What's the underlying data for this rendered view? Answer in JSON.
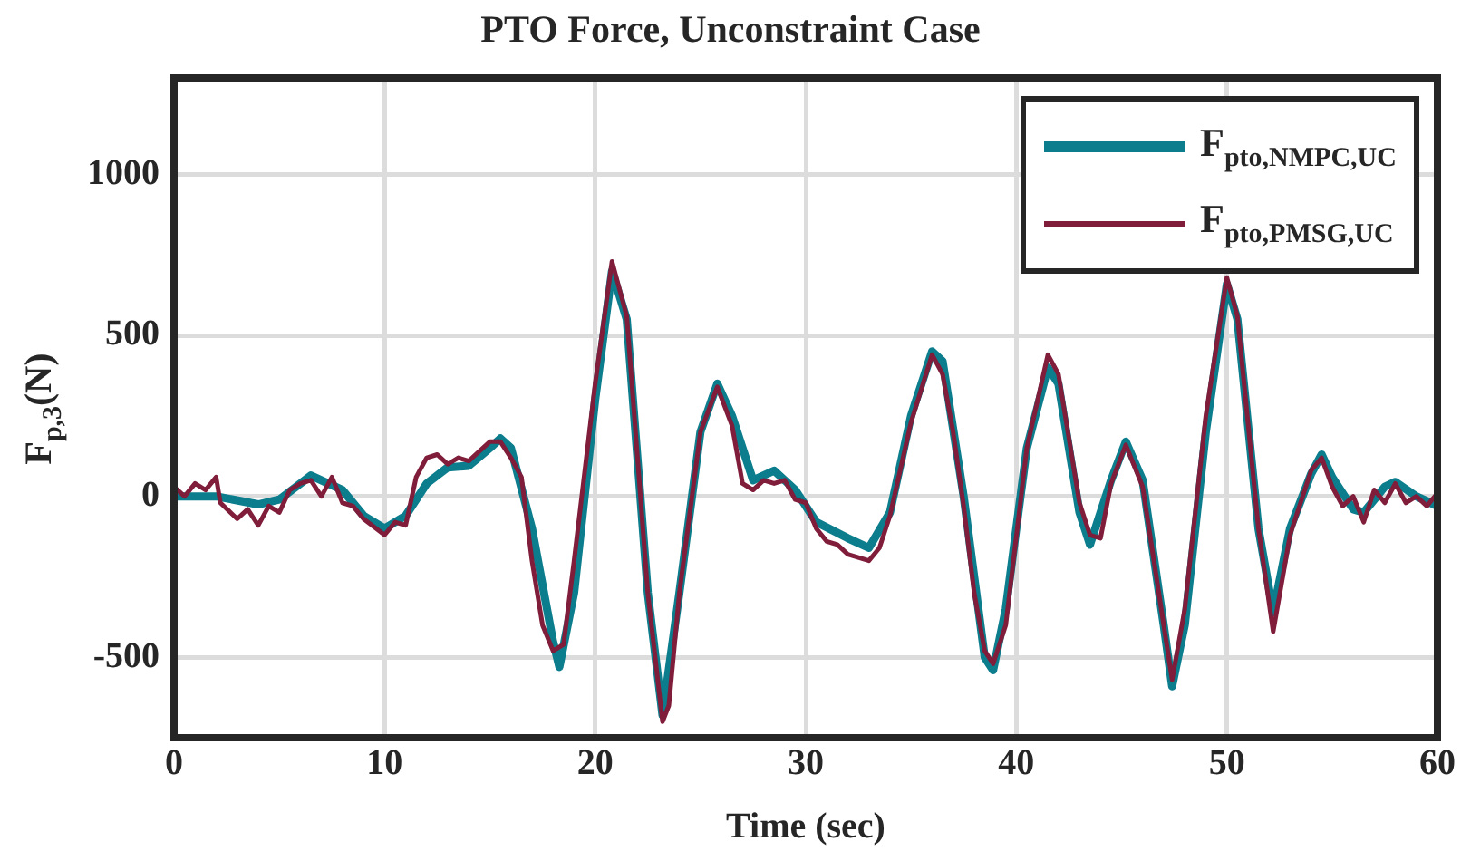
{
  "chart_data": {
    "type": "line",
    "title": "PTO Force, Unconstraint Case",
    "xlabel": "Time (sec)",
    "ylabel": "F$_{p,3}$(N)",
    "xlim": [
      0,
      60
    ],
    "xticks": [
      0,
      10,
      20,
      30,
      40,
      50,
      60
    ],
    "ylim": [
      -750,
      1300
    ],
    "yticks": [
      -500,
      0,
      500,
      1000
    ],
    "grid": true,
    "legend": "top right",
    "marker": "none",
    "line_style": "solid",
    "series": [
      {
        "name": "F$_{pto,NMPC,UC}$",
        "color": "#0b7d8c",
        "x": [
          0,
          2,
          4,
          5,
          6.5,
          8,
          9,
          10,
          11,
          12,
          13,
          14,
          15,
          15.5,
          16,
          17,
          18,
          18.3,
          19,
          20,
          20.8,
          21.5,
          22.5,
          23.2,
          24,
          25,
          25.8,
          26.5,
          27.5,
          28.5,
          29.5,
          30.5,
          32,
          33,
          34,
          35,
          36,
          36.5,
          37.5,
          38.5,
          38.9,
          39.5,
          40.5,
          41.5,
          42,
          43,
          43.5,
          44.5,
          45.2,
          46,
          47,
          47.4,
          48,
          49,
          50,
          50.5,
          51.5,
          52.2,
          53,
          54,
          54.5,
          55,
          56,
          56.5,
          57.5,
          58,
          59,
          60
        ],
        "values": [
          0,
          0,
          -25,
          -10,
          65,
          20,
          -60,
          -100,
          -60,
          40,
          90,
          95,
          150,
          180,
          150,
          -100,
          -450,
          -530,
          -300,
          300,
          700,
          550,
          -300,
          -680,
          -300,
          200,
          350,
          250,
          50,
          80,
          20,
          -80,
          -130,
          -160,
          -50,
          250,
          450,
          420,
          0,
          -500,
          -540,
          -350,
          150,
          400,
          350,
          -50,
          -150,
          50,
          170,
          50,
          -400,
          -590,
          -400,
          200,
          660,
          550,
          -100,
          -360,
          -100,
          70,
          130,
          60,
          -40,
          -50,
          30,
          45,
          0,
          -30
        ]
      },
      {
        "name": "F$_{pto,PMSG,UC}$",
        "color": "#7f1d3a",
        "x": [
          0,
          0.5,
          1,
          1.5,
          2,
          2.2,
          3,
          3.5,
          4,
          4.5,
          5,
          5.5,
          6,
          6.5,
          7,
          7.5,
          8,
          8.5,
          9,
          10,
          10.5,
          11,
          11.5,
          12,
          12.5,
          13,
          13.5,
          14,
          14.5,
          15,
          15.5,
          16,
          16.5,
          17,
          17.5,
          18,
          18.5,
          19,
          20,
          20.8,
          21.5,
          22.5,
          23.2,
          23.5,
          24,
          25,
          25.8,
          26.5,
          27,
          27.5,
          28,
          28.5,
          29,
          29.5,
          30,
          30.5,
          31,
          31.5,
          32,
          32.5,
          33,
          33.5,
          34,
          35,
          36,
          36.5,
          37,
          37.5,
          38,
          38.5,
          38.9,
          39.5,
          40.5,
          41.5,
          42,
          43,
          43.5,
          44,
          44.5,
          45.2,
          46,
          47,
          47.4,
          48,
          49,
          50,
          50.5,
          51.5,
          52.2,
          53,
          54,
          54.5,
          55,
          55.5,
          56,
          56.5,
          57,
          57.5,
          58,
          58.5,
          59,
          59.5,
          60
        ],
        "values": [
          30,
          0,
          40,
          20,
          60,
          -20,
          -70,
          -40,
          -90,
          -30,
          -50,
          20,
          40,
          50,
          0,
          60,
          -20,
          -30,
          -70,
          -120,
          -80,
          -90,
          60,
          120,
          130,
          100,
          120,
          110,
          140,
          170,
          170,
          120,
          60,
          -200,
          -400,
          -480,
          -460,
          -200,
          350,
          730,
          560,
          -300,
          -700,
          -650,
          -300,
          200,
          340,
          220,
          40,
          20,
          50,
          40,
          50,
          -10,
          -20,
          -100,
          -140,
          -150,
          -180,
          -190,
          -200,
          -160,
          -60,
          230,
          440,
          380,
          200,
          -30,
          -300,
          -480,
          -520,
          -400,
          150,
          440,
          380,
          -20,
          -120,
          -130,
          40,
          160,
          30,
          -400,
          -570,
          -350,
          250,
          680,
          560,
          -100,
          -420,
          -120,
          80,
          120,
          30,
          -30,
          0,
          -80,
          20,
          -20,
          40,
          -20,
          0,
          -30,
          10
        ]
      }
    ]
  }
}
